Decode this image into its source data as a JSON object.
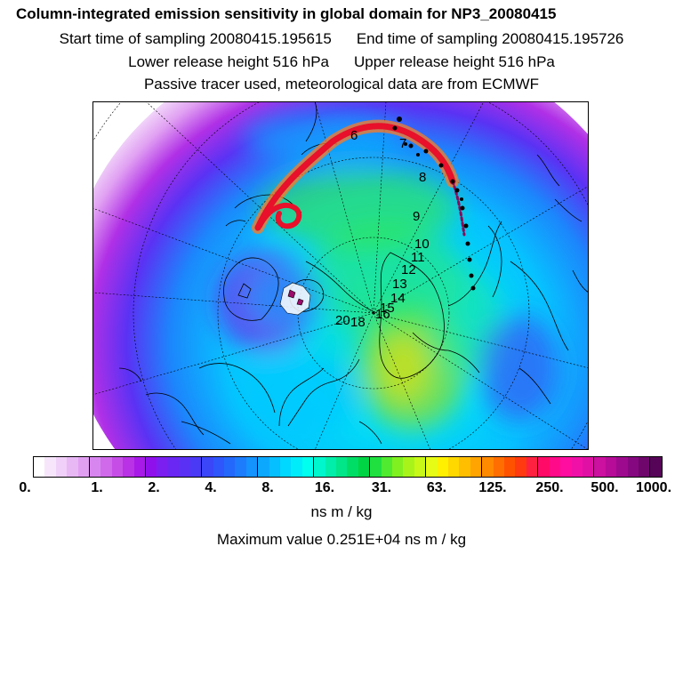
{
  "header": {
    "title": "Column-integrated emission sensitivity in global domain for NP3_20080415",
    "start_time": "Start time of sampling 20080415.195615",
    "end_time": "End time of sampling 20080415.195726",
    "lower_release": "Lower release height  516 hPa",
    "upper_release": "Upper release height  516 hPa",
    "tracer_info": "Passive tracer used, meteorological data are from ECMWF"
  },
  "map": {
    "day_labels": [
      "6",
      "7",
      "8",
      "9",
      "10",
      "11",
      "12",
      "13",
      "14",
      "15",
      "16",
      "18",
      "20"
    ],
    "plume_color": "#e8102a"
  },
  "colorbar": {
    "colors": [
      "#ffffff",
      "#f7e6fb",
      "#f0d0f8",
      "#e8b8f5",
      "#e19ff2",
      "#d886ef",
      "#d06aeb",
      "#c64ee7",
      "#b932e6",
      "#a81ae8",
      "#9010ec",
      "#7a1ff0",
      "#6a26f2",
      "#5a30f4",
      "#4a3af6",
      "#3a46f8",
      "#2e56fa",
      "#2468fb",
      "#1c7cfc",
      "#1492fd",
      "#0ca8fe",
      "#06bfff",
      "#00d8ff",
      "#00ecfa",
      "#00ffee",
      "#00f6cc",
      "#00eeaa",
      "#00e688",
      "#00dd66",
      "#00d444",
      "#20e040",
      "#50ea30",
      "#80f020",
      "#a8f41a",
      "#c8f818",
      "#e6fb16",
      "#fff000",
      "#ffd800",
      "#ffbe00",
      "#ffa400",
      "#ff8a00",
      "#ff6e00",
      "#ff5200",
      "#ff3a10",
      "#ff2240",
      "#ff0a66",
      "#ff0a88",
      "#ff0ca0",
      "#f010a8",
      "#e010a4",
      "#cc10a0",
      "#b60c98",
      "#9e0a8e",
      "#860880",
      "#6e066c",
      "#560458"
    ],
    "tick_labels": [
      "0.",
      "1.",
      "2.",
      "4.",
      "8.",
      "16.",
      "31.",
      "63.",
      "125.",
      "250.",
      "500.",
      "1000."
    ],
    "unit": "ns m / kg"
  },
  "footer": {
    "max_value": "Maximum value  0.251E+04 ns m / kg"
  }
}
